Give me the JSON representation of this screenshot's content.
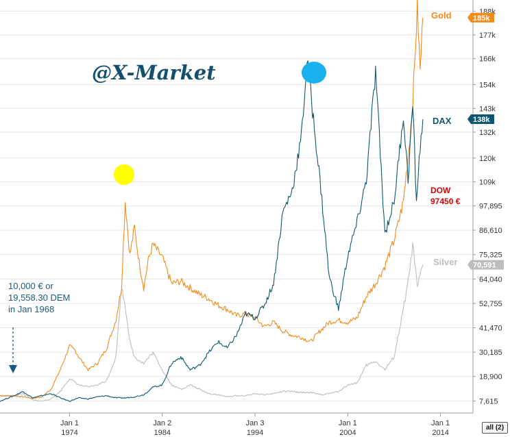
{
  "watermark": "@X-Market",
  "annotation": [
    "10,000 € or",
    "19,558.30 DEM",
    "in Jan 1968"
  ],
  "all_button": "all (2)",
  "chart_data": {
    "type": "line",
    "x_ticks": [
      {
        "x": 1974,
        "l1": "Jan 1",
        "l2": "1974"
      },
      {
        "x": 1984,
        "l1": "Jan 2",
        "l2": "1984"
      },
      {
        "x": 1994,
        "l1": "Jan 3",
        "l2": "1994"
      },
      {
        "x": 2004,
        "l1": "Jan 1",
        "l2": "2004"
      },
      {
        "x": 2014,
        "l1": "Jan 1",
        "l2": "2014"
      }
    ],
    "y_ticks": [
      "7,615",
      "18,900",
      "30,185",
      "41,470",
      "52,755",
      "64,040",
      "75,325",
      "86,610",
      "97,895",
      "109k",
      "120k",
      "132k",
      "143k",
      "154k",
      "166k",
      "177k",
      "188k"
    ],
    "ylim": [
      2000,
      190000
    ],
    "xlim": [
      1966.5,
      2017.5
    ],
    "series": [
      {
        "name": "Gold",
        "color": "#f28a1c",
        "label_color": "#f28a1c",
        "tag": "185k",
        "tag_value": 185000,
        "tag_bg": "#f28a1c",
        "points": [
          [
            1966.5,
            10000
          ],
          [
            1968,
            10000
          ],
          [
            1969,
            9500
          ],
          [
            1970,
            8800
          ],
          [
            1971,
            9500
          ],
          [
            1972,
            13000
          ],
          [
            1973,
            22000
          ],
          [
            1974,
            33000
          ],
          [
            1974.6,
            31000
          ],
          [
            1975,
            28000
          ],
          [
            1976,
            22000
          ],
          [
            1977,
            25000
          ],
          [
            1978,
            32000
          ],
          [
            1979,
            45000
          ],
          [
            1979.6,
            60000
          ],
          [
            1980,
            100000
          ],
          [
            1980.5,
            75000
          ],
          [
            1981,
            88000
          ],
          [
            1981.5,
            72000
          ],
          [
            1982,
            60000
          ],
          [
            1982.5,
            73000
          ],
          [
            1983,
            80000
          ],
          [
            1984,
            74000
          ],
          [
            1985,
            62000
          ],
          [
            1986,
            63000
          ],
          [
            1987,
            60000
          ],
          [
            1988,
            57000
          ],
          [
            1989,
            55000
          ],
          [
            1990,
            52000
          ],
          [
            1991,
            50000
          ],
          [
            1992,
            47000
          ],
          [
            1993,
            48000
          ],
          [
            1994,
            46000
          ],
          [
            1995,
            42000
          ],
          [
            1996,
            44000
          ],
          [
            1997,
            40000
          ],
          [
            1998,
            38000
          ],
          [
            1999,
            37000
          ],
          [
            2000,
            35000
          ],
          [
            2001,
            40000
          ],
          [
            2002,
            44000
          ],
          [
            2003,
            45000
          ],
          [
            2004,
            44000
          ],
          [
            2005,
            46000
          ],
          [
            2006,
            56000
          ],
          [
            2007,
            62000
          ],
          [
            2008,
            70000
          ],
          [
            2009,
            82000
          ],
          [
            2010,
            100000
          ],
          [
            2010.6,
            125000
          ],
          [
            2011,
            145000
          ],
          [
            2011.5,
            190000
          ],
          [
            2011.8,
            160000
          ],
          [
            2012.1,
            185000
          ]
        ]
      },
      {
        "name": "DAX",
        "color": "#0e566f",
        "label_color": "#0e566f",
        "tag": "138k",
        "tag_value": 138000,
        "tag_bg": "#0e566f",
        "points": [
          [
            1966.5,
            7500
          ],
          [
            1968,
            10000
          ],
          [
            1969,
            12000
          ],
          [
            1970,
            9000
          ],
          [
            1971,
            10000
          ],
          [
            1972,
            11000
          ],
          [
            1973,
            9000
          ],
          [
            1974,
            7500
          ],
          [
            1975,
            9000
          ],
          [
            1976,
            8500
          ],
          [
            1977,
            9500
          ],
          [
            1978,
            10000
          ],
          [
            1979,
            9000
          ],
          [
            1980,
            9000
          ],
          [
            1981,
            9500
          ],
          [
            1982,
            10500
          ],
          [
            1983,
            14000
          ],
          [
            1984,
            15000
          ],
          [
            1985,
            25000
          ],
          [
            1986,
            28000
          ],
          [
            1987,
            22000
          ],
          [
            1988,
            24000
          ],
          [
            1989,
            30000
          ],
          [
            1990,
            35000
          ],
          [
            1991,
            32000
          ],
          [
            1992,
            38000
          ],
          [
            1993,
            48000
          ],
          [
            1994,
            46000
          ],
          [
            1995,
            52000
          ],
          [
            1996,
            62000
          ],
          [
            1997,
            95000
          ],
          [
            1998,
            105000
          ],
          [
            1999,
            130000
          ],
          [
            1999.6,
            165000
          ],
          [
            2000,
            150000
          ],
          [
            2001,
            110000
          ],
          [
            2002,
            65000
          ],
          [
            2003,
            50000
          ],
          [
            2004,
            75000
          ],
          [
            2005,
            90000
          ],
          [
            2006,
            110000
          ],
          [
            2007,
            160000
          ],
          [
            2008,
            85000
          ],
          [
            2009,
            100000
          ],
          [
            2010,
            140000
          ],
          [
            2010.5,
            110000
          ],
          [
            2011,
            145000
          ],
          [
            2011.4,
            100000
          ],
          [
            2011.8,
            125000
          ],
          [
            2012.1,
            138000
          ]
        ]
      },
      {
        "name": "Silver",
        "color": "#bdbdbd",
        "label_color": "#bdbdbd",
        "tag": "70,591",
        "tag_value": 70591,
        "tag_bg": "#bdbdbd",
        "points": [
          [
            1966.5,
            10000
          ],
          [
            1968,
            10000
          ],
          [
            1969,
            11000
          ],
          [
            1970,
            8000
          ],
          [
            1971,
            7500
          ],
          [
            1972,
            8500
          ],
          [
            1973,
            12000
          ],
          [
            1974,
            18000
          ],
          [
            1975,
            15000
          ],
          [
            1976,
            14000
          ],
          [
            1977,
            15000
          ],
          [
            1978,
            17000
          ],
          [
            1979,
            28000
          ],
          [
            1979.6,
            60000
          ],
          [
            1980,
            52000
          ],
          [
            1980.5,
            35000
          ],
          [
            1981,
            28000
          ],
          [
            1982,
            25000
          ],
          [
            1983,
            30000
          ],
          [
            1984,
            22000
          ],
          [
            1985,
            15000
          ],
          [
            1986,
            13000
          ],
          [
            1987,
            15000
          ],
          [
            1988,
            13000
          ],
          [
            1989,
            11000
          ],
          [
            1990,
            10500
          ],
          [
            1991,
            9500
          ],
          [
            1992,
            10000
          ],
          [
            1993,
            10000
          ],
          [
            1994,
            11000
          ],
          [
            1995,
            10500
          ],
          [
            1996,
            11000
          ],
          [
            1997,
            12000
          ],
          [
            1998,
            12000
          ],
          [
            1999,
            11500
          ],
          [
            2000,
            11500
          ],
          [
            2001,
            10500
          ],
          [
            2002,
            11000
          ],
          [
            2003,
            12000
          ],
          [
            2004,
            15000
          ],
          [
            2005,
            16000
          ],
          [
            2006,
            24000
          ],
          [
            2007,
            26000
          ],
          [
            2008,
            22000
          ],
          [
            2009,
            28000
          ],
          [
            2010,
            50000
          ],
          [
            2010.6,
            65000
          ],
          [
            2011,
            80000
          ],
          [
            2011.5,
            60000
          ],
          [
            2012.1,
            70591
          ]
        ]
      }
    ],
    "dow_label": "DOW",
    "dow_value": "97450 €",
    "dow_color": "#e00000"
  }
}
